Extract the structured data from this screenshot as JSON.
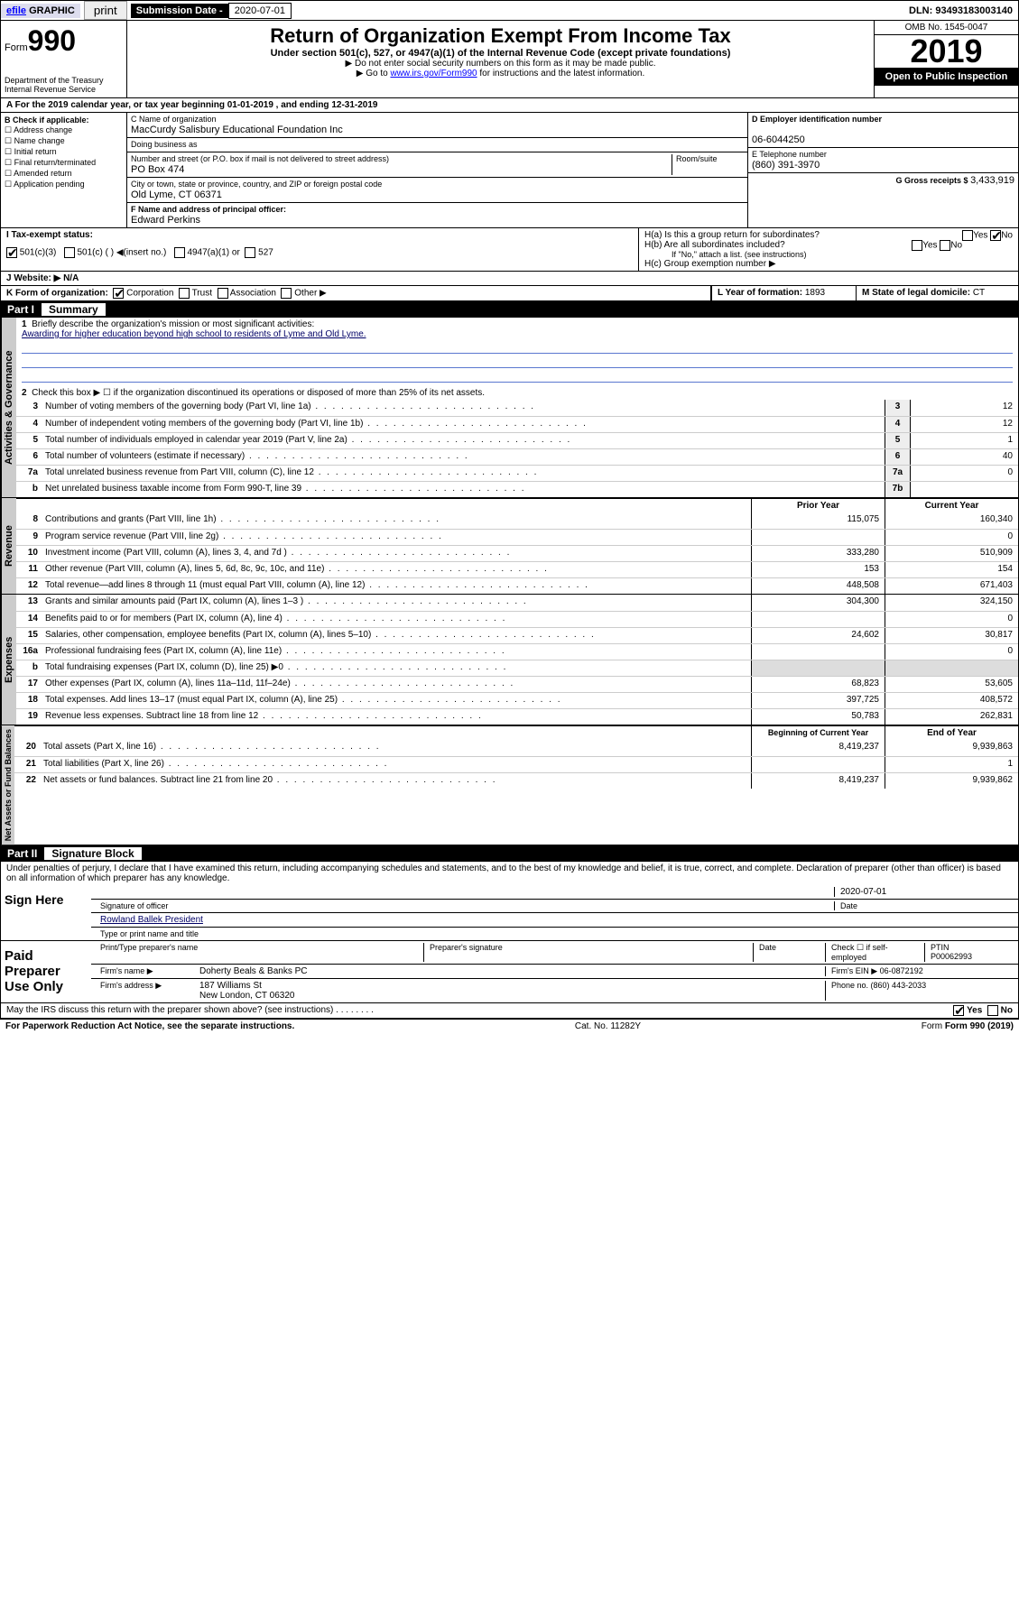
{
  "topbar": {
    "efile": "efile",
    "graphic": "GRAPHIC",
    "print": "print",
    "subdate_label": "Submission Date - ",
    "subdate": "2020-07-01",
    "dln": "DLN: 93493183003140"
  },
  "header": {
    "form_word": "Form",
    "form_num": "990",
    "dept1": "Department of the Treasury",
    "dept2": "Internal Revenue Service",
    "title": "Return of Organization Exempt From Income Tax",
    "sub": "Under section 501(c), 527, or 4947(a)(1) of the Internal Revenue Code (except private foundations)",
    "note1": "▶ Do not enter social security numbers on this form as it may be made public.",
    "note2a": "▶ Go to ",
    "note2b": "www.irs.gov/Form990",
    "note2c": " for instructions and the latest information.",
    "omb": "OMB No. 1545-0047",
    "year": "2019",
    "open": "Open to Public Inspection"
  },
  "period": "A For the 2019 calendar year, or tax year beginning 01-01-2019    , and ending 12-31-2019",
  "colB": {
    "head": "B Check if applicable:",
    "items": [
      "☐ Address change",
      "☐ Name change",
      "☐ Initial return",
      "☐ Final return/terminated",
      "☐ Amended return",
      "☐ Application pending"
    ]
  },
  "colC": {
    "name_label": "C Name of organization",
    "name": "MacCurdy Salisbury Educational Foundation Inc",
    "dba_label": "Doing business as",
    "addr_label": "Number and street (or P.O. box if mail is not delivered to street address)",
    "room_label": "Room/suite",
    "addr": "PO Box 474",
    "city_label": "City or town, state or province, country, and ZIP or foreign postal code",
    "city": "Old Lyme, CT  06371",
    "officer_label": "F  Name and address of principal officer:",
    "officer": "Edward Perkins"
  },
  "colE": {
    "ein_label": "D Employer identification number",
    "ein": "06-6044250",
    "tel_label": "E Telephone number",
    "tel": "(860) 391-3970",
    "gross_label": "G Gross receipts $ ",
    "gross": "3,433,919"
  },
  "colH": {
    "ha": "H(a)  Is this a group return for subordinates?",
    "hb": "H(b)  Are all subordinates included?",
    "hb_note": "If \"No,\" attach a list. (see instructions)",
    "hc": "H(c)  Group exemption number ▶",
    "yes": "Yes",
    "no": "No"
  },
  "rowI": "I   Tax-exempt status:",
  "rowI_opts": [
    "501(c)(3)",
    "501(c) (  ) ◀(insert no.)",
    "4947(a)(1) or",
    "527"
  ],
  "rowJ": "J   Website: ▶  N/A",
  "rowK": {
    "label": "K Form of organization:",
    "opts": [
      "Corporation",
      "Trust",
      "Association",
      "Other ▶"
    ],
    "l_label": "L Year of formation: ",
    "l_val": "1893",
    "m_label": "M State of legal domicile: ",
    "m_val": "CT"
  },
  "parts": {
    "p1": "Part I",
    "p1t": "Summary",
    "p2": "Part II",
    "p2t": "Signature Block"
  },
  "vtabs": {
    "gov": "Activities & Governance",
    "rev": "Revenue",
    "exp": "Expenses",
    "net": "Net Assets or\nFund Balances"
  },
  "p1": {
    "l1": "Briefly describe the organization's mission or most significant activities:",
    "l1a": "Awarding for higher education beyond high school to residents of Lyme and Old Lyme.",
    "l2": "Check this box ▶ ☐  if the organization discontinued its operations or disposed of more than 25% of its net assets.",
    "rows_gov": [
      {
        "n": "3",
        "d": "Number of voting members of the governing body (Part VI, line 1a)",
        "c": "3",
        "v": "12"
      },
      {
        "n": "4",
        "d": "Number of independent voting members of the governing body (Part VI, line 1b)",
        "c": "4",
        "v": "12"
      },
      {
        "n": "5",
        "d": "Total number of individuals employed in calendar year 2019 (Part V, line 2a)",
        "c": "5",
        "v": "1"
      },
      {
        "n": "6",
        "d": "Total number of volunteers (estimate if necessary)",
        "c": "6",
        "v": "40"
      },
      {
        "n": "7a",
        "d": "Total unrelated business revenue from Part VIII, column (C), line 12",
        "c": "7a",
        "v": "0"
      },
      {
        "n": "b",
        "d": "Net unrelated business taxable income from Form 990-T, line 39",
        "c": "7b",
        "v": ""
      }
    ],
    "colheads": {
      "prior": "Prior Year",
      "curr": "Current Year",
      "beg": "Beginning of Current Year",
      "end": "End of Year"
    },
    "rows_rev": [
      {
        "n": "8",
        "d": "Contributions and grants (Part VIII, line 1h)",
        "p": "115,075",
        "c": "160,340"
      },
      {
        "n": "9",
        "d": "Program service revenue (Part VIII, line 2g)",
        "p": "",
        "c": "0"
      },
      {
        "n": "10",
        "d": "Investment income (Part VIII, column (A), lines 3, 4, and 7d )",
        "p": "333,280",
        "c": "510,909"
      },
      {
        "n": "11",
        "d": "Other revenue (Part VIII, column (A), lines 5, 6d, 8c, 9c, 10c, and 11e)",
        "p": "153",
        "c": "154"
      },
      {
        "n": "12",
        "d": "Total revenue—add lines 8 through 11 (must equal Part VIII, column (A), line 12)",
        "p": "448,508",
        "c": "671,403"
      }
    ],
    "rows_exp": [
      {
        "n": "13",
        "d": "Grants and similar amounts paid (Part IX, column (A), lines 1–3 )",
        "p": "304,300",
        "c": "324,150"
      },
      {
        "n": "14",
        "d": "Benefits paid to or for members (Part IX, column (A), line 4)",
        "p": "",
        "c": "0"
      },
      {
        "n": "15",
        "d": "Salaries, other compensation, employee benefits (Part IX, column (A), lines 5–10)",
        "p": "24,602",
        "c": "30,817"
      },
      {
        "n": "16a",
        "d": "Professional fundraising fees (Part IX, column (A), line 11e)",
        "p": "",
        "c": "0"
      },
      {
        "n": "b",
        "d": "Total fundraising expenses (Part IX, column (D), line 25) ▶0",
        "p": "shade",
        "c": "shade"
      },
      {
        "n": "17",
        "d": "Other expenses (Part IX, column (A), lines 11a–11d, 11f–24e)",
        "p": "68,823",
        "c": "53,605"
      },
      {
        "n": "18",
        "d": "Total expenses. Add lines 13–17 (must equal Part IX, column (A), line 25)",
        "p": "397,725",
        "c": "408,572"
      },
      {
        "n": "19",
        "d": "Revenue less expenses. Subtract line 18 from line 12",
        "p": "50,783",
        "c": "262,831"
      }
    ],
    "rows_net": [
      {
        "n": "20",
        "d": "Total assets (Part X, line 16)",
        "p": "8,419,237",
        "c": "9,939,863"
      },
      {
        "n": "21",
        "d": "Total liabilities (Part X, line 26)",
        "p": "",
        "c": "1"
      },
      {
        "n": "22",
        "d": "Net assets or fund balances. Subtract line 21 from line 20",
        "p": "8,419,237",
        "c": "9,939,862"
      }
    ]
  },
  "sig": {
    "perjury": "Under penalties of perjury, I declare that I have examined this return, including accompanying schedules and statements, and to the best of my knowledge and belief, it is true, correct, and complete. Declaration of preparer (other than officer) is based on all information of which preparer has any knowledge.",
    "sign_here": "Sign Here",
    "sig_officer": "Signature of officer",
    "date": "Date",
    "date_val": "2020-07-01",
    "name_title": "Rowland Ballek  President",
    "type_name": "Type or print name and title",
    "paid": "Paid Preparer Use Only",
    "prep_name_label": "Print/Type preparer's name",
    "prep_sig_label": "Preparer's signature",
    "date_label": "Date",
    "check_self": "Check ☐ if self-employed",
    "ptin_label": "PTIN",
    "ptin": "P00062993",
    "firm_name_label": "Firm's name    ▶",
    "firm_name": "Doherty Beals & Banks PC",
    "firm_ein_label": "Firm's EIN ▶",
    "firm_ein": "06-0872192",
    "firm_addr_label": "Firm's address ▶",
    "firm_addr1": "187 Williams St",
    "firm_addr2": "New London, CT  06320",
    "phone_label": "Phone no. ",
    "phone": "(860) 443-2033",
    "discuss": "May the IRS discuss this return with the preparer shown above? (see instructions)",
    "yes": "Yes",
    "no": "No"
  },
  "footer": {
    "pra": "For Paperwork Reduction Act Notice, see the separate instructions.",
    "cat": "Cat. No. 11282Y",
    "form": "Form 990 (2019)"
  }
}
